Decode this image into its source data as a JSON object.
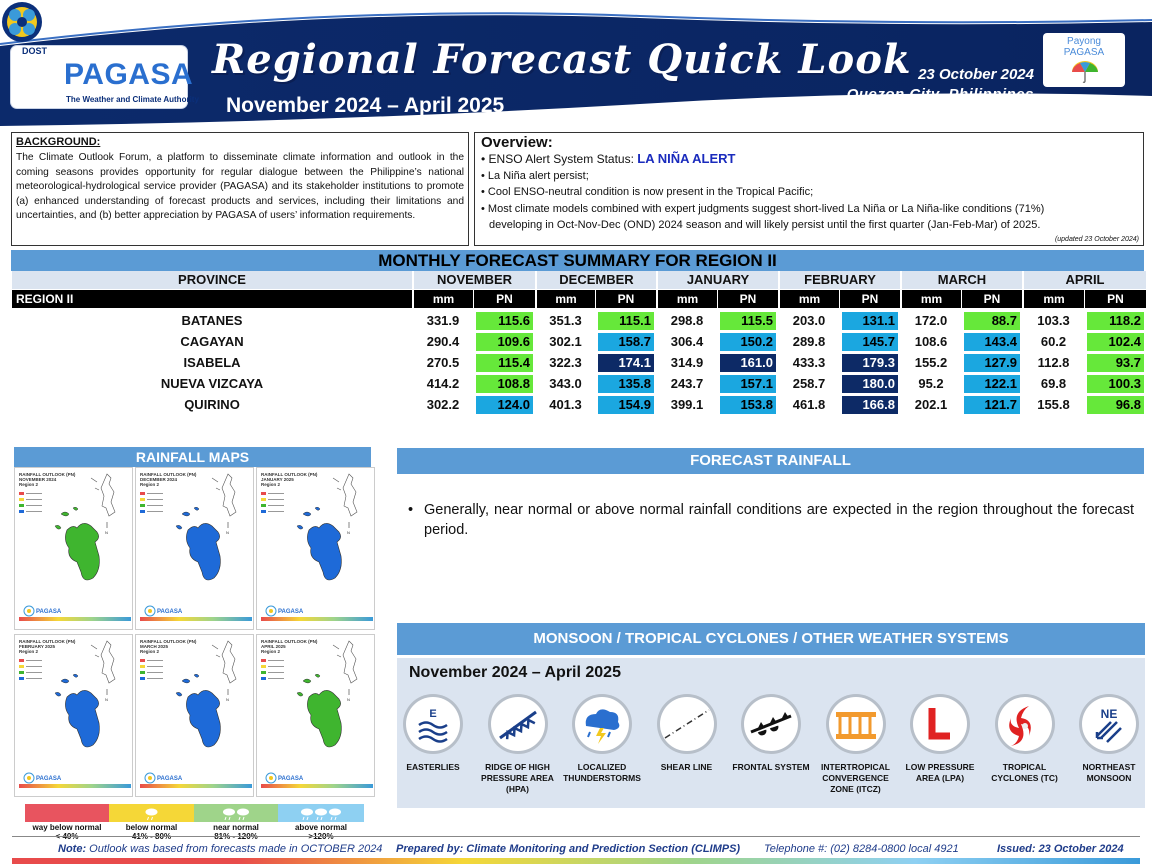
{
  "header": {
    "dost_label": "DOST",
    "brand": "PAGASA",
    "brand_tagline": "The Weather and Climate Authority",
    "title": "Regional Forecast Quick Look",
    "period": "November 2024 – April 2025",
    "issue_date": "23 October 2024",
    "issue_place": "Quezon City, Philippines",
    "partner_line1": "Payong",
    "partner_line2": "PAGASA"
  },
  "background": {
    "title": "BACKGROUND:",
    "text": "The Climate Outlook Forum, a platform to disseminate climate information and outlook in the coming seasons provides opportunity for regular dialogue between the Philippine’s national meteorological-hydrological service provider (PAGASA) and its stakeholder institutions to promote (a) enhanced understanding of forecast products and services, including their limitations and uncertainties, and (b) better appreciation by PAGASA of users’ information requirements."
  },
  "overview": {
    "title": "Overview:",
    "enso_label": "• ENSO Alert System Status: ",
    "enso_status": "LA NIÑA ALERT",
    "bullets": [
      "• La Niña alert persist;",
      "• Cool ENSO-neutral condition is now present in the Tropical Pacific;",
      "• Most climate models combined with expert judgments suggest short-lived La Niña or La Niña-like conditions (71%)",
      "developing in Oct-Nov-Dec (OND) 2024 season and will likely persist until the first quarter (Jan-Feb-Mar) of 2025."
    ],
    "updated": "(updated 23 October 2024)"
  },
  "table": {
    "title": "MONTHLY FORECAST SUMMARY FOR REGION II",
    "province_header": "PROVINCE",
    "region_label": "REGION II",
    "months": [
      "NOVEMBER",
      "DECEMBER",
      "JANUARY",
      "FEBRUARY",
      "MARCH",
      "APRIL"
    ],
    "sub_mm": "mm",
    "sub_pn": "PN",
    "colors": {
      "green": "#66e83a",
      "blue": "#1ba7e0",
      "navy": "#0d2a66"
    },
    "rows": [
      {
        "province": "BATANES",
        "cells": [
          {
            "mm": "331.9",
            "pn": "115.6",
            "c": "green"
          },
          {
            "mm": "351.3",
            "pn": "115.1",
            "c": "green"
          },
          {
            "mm": "298.8",
            "pn": "115.5",
            "c": "green"
          },
          {
            "mm": "203.0",
            "pn": "131.1",
            "c": "blue"
          },
          {
            "mm": "172.0",
            "pn": "88.7",
            "c": "green"
          },
          {
            "mm": "103.3",
            "pn": "118.2",
            "c": "green"
          }
        ]
      },
      {
        "province": "CAGAYAN",
        "cells": [
          {
            "mm": "290.4",
            "pn": "109.6",
            "c": "green"
          },
          {
            "mm": "302.1",
            "pn": "158.7",
            "c": "blue"
          },
          {
            "mm": "306.4",
            "pn": "150.2",
            "c": "blue"
          },
          {
            "mm": "289.8",
            "pn": "145.7",
            "c": "blue"
          },
          {
            "mm": "108.6",
            "pn": "143.4",
            "c": "blue"
          },
          {
            "mm": "60.2",
            "pn": "102.4",
            "c": "green"
          }
        ]
      },
      {
        "province": "ISABELA",
        "cells": [
          {
            "mm": "270.5",
            "pn": "115.4",
            "c": "green"
          },
          {
            "mm": "322.3",
            "pn": "174.1",
            "c": "navy"
          },
          {
            "mm": "314.9",
            "pn": "161.0",
            "c": "navy"
          },
          {
            "mm": "433.3",
            "pn": "179.3",
            "c": "navy"
          },
          {
            "mm": "155.2",
            "pn": "127.9",
            "c": "blue"
          },
          {
            "mm": "112.8",
            "pn": "93.7",
            "c": "green"
          }
        ]
      },
      {
        "province": "NUEVA VIZCAYA",
        "cells": [
          {
            "mm": "414.2",
            "pn": "108.8",
            "c": "green"
          },
          {
            "mm": "343.0",
            "pn": "135.8",
            "c": "blue"
          },
          {
            "mm": "243.7",
            "pn": "157.1",
            "c": "blue"
          },
          {
            "mm": "258.7",
            "pn": "180.0",
            "c": "navy"
          },
          {
            "mm": "95.2",
            "pn": "122.1",
            "c": "blue"
          },
          {
            "mm": "69.8",
            "pn": "100.3",
            "c": "green"
          }
        ]
      },
      {
        "province": "QUIRINO",
        "cells": [
          {
            "mm": "302.2",
            "pn": "124.0",
            "c": "blue"
          },
          {
            "mm": "401.3",
            "pn": "154.9",
            "c": "blue"
          },
          {
            "mm": "399.1",
            "pn": "153.8",
            "c": "blue"
          },
          {
            "mm": "461.8",
            "pn": "166.8",
            "c": "navy"
          },
          {
            "mm": "202.1",
            "pn": "121.7",
            "c": "blue"
          },
          {
            "mm": "155.8",
            "pn": "96.8",
            "c": "green"
          }
        ]
      }
    ]
  },
  "rainfall_maps": {
    "title": "RAINFALL MAPS",
    "maps": [
      {
        "line1": "RAINFALL OUTLOOK (PN)",
        "line2": "NOVEMBER 2024",
        "line3": "Region 2",
        "fill": "#3fb52f"
      },
      {
        "line1": "RAINFALL OUTLOOK (PN)",
        "line2": "DECEMBER 2024",
        "line3": "Region 2",
        "fill": "#1e6ad8"
      },
      {
        "line1": "RAINFALL OUTLOOK (PN)",
        "line2": "JANUARY 2025",
        "line3": "Region 2",
        "fill": "#1e6ad8"
      },
      {
        "line1": "RAINFALL OUTLOOK (PN)",
        "line2": "FEBRUARY 2025",
        "line3": "Region 2",
        "fill": "#1e6ad8"
      },
      {
        "line1": "RAINFALL OUTLOOK (PN)",
        "line2": "MARCH 2025",
        "line3": "Region 2",
        "fill": "#1e6ad8"
      },
      {
        "line1": "RAINFALL OUTLOOK (PN)",
        "line2": "APRIL 2025",
        "line3": "Region 2",
        "fill": "#3fb52f"
      }
    ],
    "legend": [
      {
        "label": "way below normal",
        "range": "< 40%",
        "color": "#e8545f"
      },
      {
        "label": "below normal",
        "range": "41% - 80%",
        "color": "#f5d737"
      },
      {
        "label": "near normal",
        "range": "81% - 120%",
        "color": "#9fd48a"
      },
      {
        "label": "above normal",
        "range": ">120%",
        "color": "#8ed0f2"
      }
    ]
  },
  "forecast_rainfall": {
    "title": "FORECAST RAINFALL",
    "bullet": "Generally, near normal or above normal rainfall conditions are expected in the region throughout the forecast period."
  },
  "weather_systems": {
    "title": "MONSOON / TROPICAL CYCLONES / OTHER WEATHER SYSTEMS",
    "period": "November 2024 – April 2025",
    "items": [
      {
        "label": "EASTERLIES",
        "icon": "easterlies-icon"
      },
      {
        "label": "RIDGE OF HIGH PRESSURE AREA (HPA)",
        "icon": "ridge-icon"
      },
      {
        "label": "LOCALIZED THUNDERSTORMS",
        "icon": "thunderstorm-icon"
      },
      {
        "label": "SHEAR LINE",
        "icon": "shear-line-icon"
      },
      {
        "label": "FRONTAL SYSTEM",
        "icon": "frontal-system-icon"
      },
      {
        "label": "INTERTROPICAL CONVERGENCE ZONE (ITCZ)",
        "icon": "itcz-icon"
      },
      {
        "label": "LOW PRESSURE AREA (LPA)",
        "icon": "lpa-icon"
      },
      {
        "label": "TROPICAL CYCLONES (TC)",
        "icon": "tropical-cyclone-icon"
      },
      {
        "label": "NORTHEAST MONSOON",
        "icon": "northeast-monsoon-icon"
      }
    ]
  },
  "footer": {
    "note_label": "Note:",
    "note": " Outlook was based from forecasts made in OCTOBER 2024",
    "prepared": "Prepared by: Climate Monitoring and Prediction Section (CLIMPS)",
    "telephone": "Telephone #: (02) 8284-0800 local 4921",
    "issued": "Issued: 23 October 2024"
  }
}
